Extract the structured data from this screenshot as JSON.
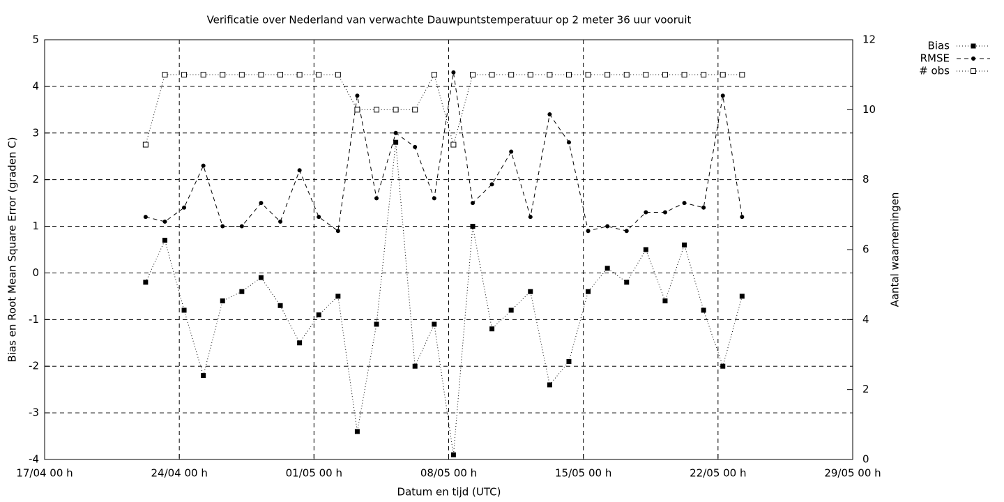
{
  "chart_data": {
    "type": "line",
    "title": "Verificatie over Nederland van verwachte Dauwpuntstemperatuur op 2 meter 36 uur vooruit",
    "xlabel": "Datum en tijd (UTC)",
    "ylabel": "Bias en Root Mean Square Error (graden C)",
    "y2label": "Aantal waarnemingen",
    "x": [
      "22/04 06 h",
      "23/04 06 h",
      "24/04 06 h",
      "25/04 06 h",
      "26/04 06 h",
      "27/04 06 h",
      "28/04 06 h",
      "29/04 06 h",
      "30/04 06 h",
      "01/05 06 h",
      "02/05 06 h",
      "03/05 06 h",
      "04/05 06 h",
      "05/05 06 h",
      "06/05 06 h",
      "07/05 06 h",
      "08/05 06 h",
      "09/05 06 h",
      "10/05 06 h",
      "11/05 06 h",
      "12/05 06 h",
      "13/05 06 h",
      "14/05 06 h",
      "15/05 06 h",
      "16/05 06 h",
      "17/05 06 h",
      "18/05 06 h",
      "19/05 06 h",
      "20/05 06 h",
      "21/05 06 h",
      "22/05 06 h",
      "23/05 06 h"
    ],
    "series": [
      {
        "name": "Bias",
        "color": "#000000",
        "line": "dotted",
        "marker": "filled-square",
        "values": [
          -0.2,
          0.7,
          -0.8,
          -2.2,
          -0.6,
          -0.4,
          -0.1,
          -0.7,
          -1.5,
          -0.9,
          -0.5,
          -3.4,
          -1.1,
          2.8,
          -2.0,
          -1.1,
          -3.9,
          1.0,
          -1.2,
          -0.8,
          -0.4,
          -2.4,
          -1.9,
          -0.4,
          0.1,
          -0.2,
          0.5,
          -0.6,
          0.6,
          -0.8,
          -2.0,
          -0.5
        ]
      },
      {
        "name": "RMSE",
        "color": "#000000",
        "line": "dashed",
        "marker": "filled-circle",
        "values": [
          1.2,
          1.1,
          1.4,
          2.3,
          1.0,
          1.0,
          1.5,
          1.1,
          2.2,
          1.2,
          0.9,
          3.8,
          1.6,
          3.0,
          2.7,
          1.6,
          4.3,
          1.5,
          1.9,
          2.6,
          1.2,
          3.4,
          2.8,
          0.9,
          1.0,
          0.9,
          1.3,
          1.3,
          1.5,
          1.4,
          3.8,
          1.2
        ]
      },
      {
        "name": "# obs",
        "color": "#000000",
        "line": "dotted",
        "marker": "open-square",
        "axis": "y2",
        "values": [
          9,
          11,
          11,
          11,
          11,
          11,
          11,
          11,
          11,
          11,
          11,
          10,
          10,
          10,
          10,
          11,
          9,
          11,
          11,
          11,
          11,
          11,
          11,
          11,
          11,
          11,
          11,
          11,
          11,
          11,
          11,
          11
        ]
      }
    ],
    "xlim": [
      "17/04 00 h",
      "29/05 00 h"
    ],
    "xticks": [
      "17/04 00 h",
      "24/04 00 h",
      "01/05 00 h",
      "08/05 00 h",
      "15/05 00 h",
      "22/05 00 h",
      "29/05 00 h"
    ],
    "ylim": [
      -4,
      5
    ],
    "yticks": [
      -4,
      -3,
      -2,
      -1,
      0,
      1,
      2,
      3,
      4,
      5
    ],
    "y2lim": [
      0,
      12
    ],
    "y2ticks": [
      0,
      2,
      4,
      6,
      8,
      10,
      12
    ],
    "grid": true,
    "legend": "outside-top-right"
  }
}
